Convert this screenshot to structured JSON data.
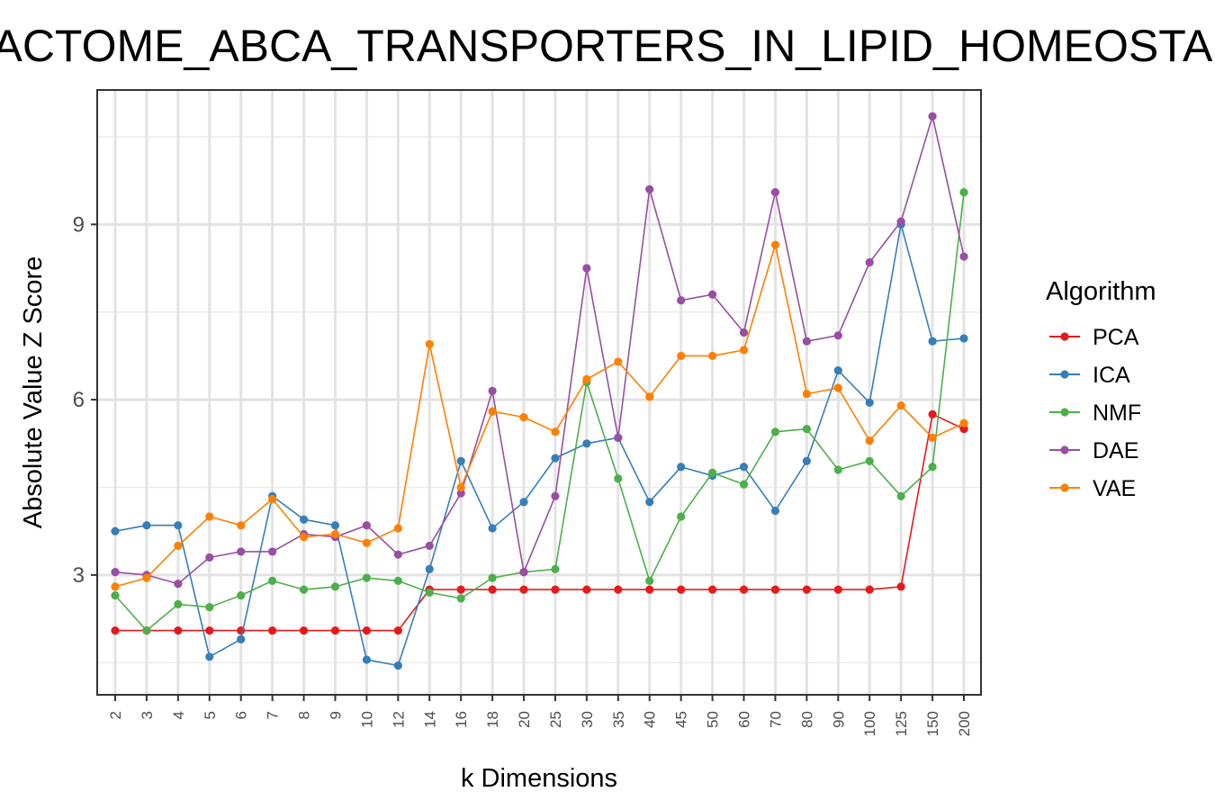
{
  "chart_data": {
    "type": "line",
    "title": "REACTOME_ABCA_TRANSPORTERS_IN_LIPID_HOMEOSTASIS",
    "xlabel": "k Dimensions",
    "ylabel": "Absolute Value Z Score",
    "categories": [
      "2",
      "3",
      "4",
      "5",
      "6",
      "7",
      "8",
      "9",
      "10",
      "12",
      "14",
      "16",
      "18",
      "20",
      "25",
      "30",
      "35",
      "40",
      "45",
      "50",
      "60",
      "70",
      "80",
      "90",
      "100",
      "125",
      "150",
      "200"
    ],
    "ylim": [
      0.95,
      11.3
    ],
    "yticks": [
      3,
      6,
      9
    ],
    "grid": true,
    "legend": {
      "title": "Algorithm",
      "position": "right"
    },
    "series": [
      {
        "name": "PCA",
        "color": "#e41a1c",
        "values": [
          2.05,
          2.05,
          2.05,
          2.05,
          2.05,
          2.05,
          2.05,
          2.05,
          2.05,
          2.05,
          2.75,
          2.75,
          2.75,
          2.75,
          2.75,
          2.75,
          2.75,
          2.75,
          2.75,
          2.75,
          2.75,
          2.75,
          2.75,
          2.75,
          2.75,
          2.8,
          5.75,
          5.5
        ]
      },
      {
        "name": "ICA",
        "color": "#377eb8",
        "values": [
          3.75,
          3.85,
          3.85,
          1.6,
          1.9,
          4.35,
          3.95,
          3.85,
          1.55,
          1.45,
          3.1,
          4.95,
          3.8,
          4.25,
          5.0,
          5.25,
          5.35,
          4.25,
          4.85,
          4.7,
          4.85,
          4.1,
          4.95,
          6.5,
          5.95,
          9.0,
          7.0,
          7.05
        ]
      },
      {
        "name": "NMF",
        "color": "#4daf4a",
        "values": [
          2.65,
          2.05,
          2.5,
          2.45,
          2.65,
          2.9,
          2.75,
          2.8,
          2.95,
          2.9,
          2.7,
          2.6,
          2.95,
          3.05,
          3.1,
          6.3,
          4.65,
          2.9,
          4.0,
          4.75,
          4.55,
          5.45,
          5.5,
          4.8,
          4.95,
          4.35,
          4.85,
          9.55
        ]
      },
      {
        "name": "DAE",
        "color": "#984ea3",
        "values": [
          3.05,
          3.0,
          2.85,
          3.3,
          3.4,
          3.4,
          3.7,
          3.65,
          3.85,
          3.35,
          3.5,
          4.4,
          6.15,
          3.05,
          4.35,
          8.25,
          5.35,
          9.6,
          7.7,
          7.8,
          7.15,
          9.55,
          7.0,
          7.1,
          8.35,
          9.05,
          10.85,
          8.45
        ]
      },
      {
        "name": "VAE",
        "color": "#ff7f00",
        "values": [
          2.8,
          2.95,
          3.5,
          4.0,
          3.85,
          4.3,
          3.65,
          3.7,
          3.55,
          3.8,
          6.95,
          4.5,
          5.8,
          5.7,
          5.45,
          6.35,
          6.65,
          6.05,
          6.75,
          6.75,
          6.85,
          8.65,
          6.1,
          6.2,
          5.3,
          5.9,
          5.35,
          5.6
        ]
      }
    ]
  }
}
